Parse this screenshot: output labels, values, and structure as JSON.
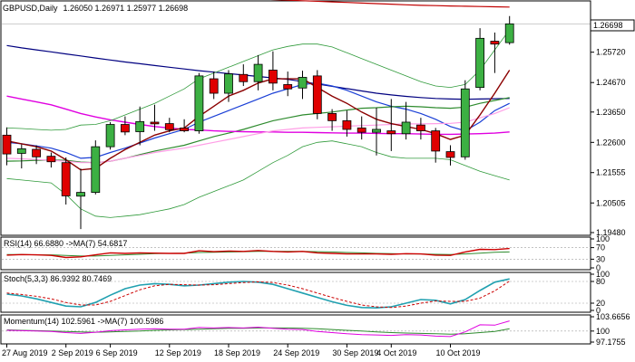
{
  "header": {
    "symbol": "GBPUSD,Daily",
    "ohlc": "1.26050 1.26971 1.25977 1.26698"
  },
  "price_axis": {
    "labels": [
      "1.25720",
      "1.24670",
      "1.23650",
      "1.22600",
      "1.21555",
      "1.20505",
      "1.19480"
    ],
    "current_tag": "1.26698"
  },
  "date_axis": {
    "labels": [
      "27 Aug 2019",
      "2 Sep 2019",
      "6 Sep 2019",
      "12 Sep 2019",
      "18 Sep 2019",
      "24 Sep 2019",
      "30 Sep 2019",
      "4 Oct 2019",
      "10 Oct 2019"
    ]
  },
  "indicators": {
    "rsi": {
      "label": "RSI(14) 66.6880 ->MA(7) 54.6817",
      "levels": [
        "100",
        "70",
        "30",
        "0"
      ]
    },
    "stoch": {
      "label": "Stoch(5,3,3) 86.9392 80.7469",
      "levels": [
        "100",
        "80",
        "20",
        "0"
      ]
    },
    "momentum": {
      "label": "Momentum(14) 102.5961 ->MA(7) 100.5986",
      "levels": [
        "103.6656",
        "100",
        "97.1755"
      ]
    }
  },
  "colors": {
    "bull": "#3cb043",
    "bear": "#e00000",
    "sma_red": "#c00000",
    "sma_navy": "#000080",
    "ema_blue": "#1a3fd6",
    "ma_green": "#2e8b2e",
    "ma_magenta": "#e000e0",
    "ma_pink": "#ff9ee6",
    "boll": "#2f9a3a",
    "fast_red": "#8b0000",
    "stoch_main": "#20a0b0",
    "stoch_signal": "#cc0000",
    "momentum_main": "#e000e0",
    "momentum_signal": "#2e8b2e",
    "rsi_main": "#cc0000",
    "rsi_ma": "#2e8b2e"
  },
  "chart_data": {
    "type": "candlestick",
    "ylim": [
      1.1948,
      1.274
    ],
    "candles": [
      {
        "o": 1.2285,
        "h": 1.2312,
        "l": 1.2181,
        "c": 1.222
      },
      {
        "o": 1.2222,
        "h": 1.2253,
        "l": 1.217,
        "c": 1.2238
      },
      {
        "o": 1.2236,
        "h": 1.225,
        "l": 1.2185,
        "c": 1.221
      },
      {
        "o": 1.2212,
        "h": 1.2225,
        "l": 1.2173,
        "c": 1.2193
      },
      {
        "o": 1.219,
        "h": 1.2208,
        "l": 1.2045,
        "c": 1.2075
      },
      {
        "o": 1.2074,
        "h": 1.2169,
        "l": 1.196,
        "c": 1.2087
      },
      {
        "o": 1.2087,
        "h": 1.2267,
        "l": 1.208,
        "c": 1.2245
      },
      {
        "o": 1.2245,
        "h": 1.233,
        "l": 1.2235,
        "c": 1.2322
      },
      {
        "o": 1.2322,
        "h": 1.235,
        "l": 1.2285,
        "c": 1.2296
      },
      {
        "o": 1.2297,
        "h": 1.2384,
        "l": 1.225,
        "c": 1.2332
      },
      {
        "o": 1.233,
        "h": 1.239,
        "l": 1.23,
        "c": 1.2324
      },
      {
        "o": 1.2325,
        "h": 1.2345,
        "l": 1.2295,
        "c": 1.2304
      },
      {
        "o": 1.231,
        "h": 1.234,
        "l": 1.2295,
        "c": 1.23
      },
      {
        "o": 1.23,
        "h": 1.25,
        "l": 1.229,
        "c": 1.249
      },
      {
        "o": 1.248,
        "h": 1.2505,
        "l": 1.241,
        "c": 1.243
      },
      {
        "o": 1.243,
        "h": 1.251,
        "l": 1.24,
        "c": 1.2497
      },
      {
        "o": 1.2495,
        "h": 1.253,
        "l": 1.2455,
        "c": 1.247
      },
      {
        "o": 1.247,
        "h": 1.2562,
        "l": 1.244,
        "c": 1.253
      },
      {
        "o": 1.251,
        "h": 1.2575,
        "l": 1.244,
        "c": 1.2465
      },
      {
        "o": 1.246,
        "h": 1.2505,
        "l": 1.242,
        "c": 1.2445
      },
      {
        "o": 1.2448,
        "h": 1.2508,
        "l": 1.241,
        "c": 1.2485
      },
      {
        "o": 1.249,
        "h": 1.251,
        "l": 1.234,
        "c": 1.236
      },
      {
        "o": 1.236,
        "h": 1.2375,
        "l": 1.23,
        "c": 1.2335
      },
      {
        "o": 1.2335,
        "h": 1.237,
        "l": 1.228,
        "c": 1.2305
      },
      {
        "o": 1.231,
        "h": 1.235,
        "l": 1.227,
        "c": 1.2295
      },
      {
        "o": 1.2295,
        "h": 1.238,
        "l": 1.2215,
        "c": 1.2305
      },
      {
        "o": 1.23,
        "h": 1.241,
        "l": 1.223,
        "c": 1.229
      },
      {
        "o": 1.229,
        "h": 1.24,
        "l": 1.227,
        "c": 1.233
      },
      {
        "o": 1.232,
        "h": 1.2345,
        "l": 1.227,
        "c": 1.23
      },
      {
        "o": 1.23,
        "h": 1.231,
        "l": 1.219,
        "c": 1.223
      },
      {
        "o": 1.2228,
        "h": 1.225,
        "l": 1.218,
        "c": 1.2208
      },
      {
        "o": 1.221,
        "h": 1.2475,
        "l": 1.22,
        "c": 1.2445
      },
      {
        "o": 1.245,
        "h": 1.2655,
        "l": 1.244,
        "c": 1.262
      },
      {
        "o": 1.261,
        "h": 1.264,
        "l": 1.25,
        "c": 1.26
      },
      {
        "o": 1.2605,
        "h": 1.2697,
        "l": 1.2598,
        "c": 1.267
      }
    ],
    "overlays": [
      {
        "key": "sma200",
        "color": "#c00000",
        "width": 1.2,
        "values": [
          1.279,
          1.2788,
          1.2786,
          1.2784,
          1.2782,
          1.278,
          1.2778,
          1.2776,
          1.2774,
          1.2772,
          1.277,
          1.2768,
          1.2766,
          1.2764,
          1.2762,
          1.276,
          1.2758,
          1.2756,
          1.2754,
          1.2752,
          1.275,
          1.2748,
          1.2746,
          1.2744,
          1.2742,
          1.274,
          1.2738,
          1.2736,
          1.2734,
          1.2733,
          1.2732,
          1.2731,
          1.273,
          1.2729,
          1.2728
        ]
      },
      {
        "key": "sma100",
        "color": "#000080",
        "width": 1.2,
        "values": [
          1.2595,
          1.2587,
          1.258,
          1.2573,
          1.2566,
          1.2559,
          1.2552,
          1.2545,
          1.2538,
          1.2532,
          1.2526,
          1.252,
          1.2514,
          1.2508,
          1.2503,
          1.2498,
          1.2493,
          1.2488,
          1.2483,
          1.2478,
          1.247,
          1.2462,
          1.2454,
          1.2446,
          1.2438,
          1.243,
          1.2424,
          1.2419,
          1.2415,
          1.2412,
          1.241,
          1.2409,
          1.241,
          1.2411,
          1.2412
        ]
      },
      {
        "key": "ema_fast",
        "color": "#1a3fd6",
        "width": 1.2,
        "values": [
          1.226,
          1.2255,
          1.2248,
          1.224,
          1.2225,
          1.2205,
          1.2208,
          1.2225,
          1.224,
          1.2258,
          1.2275,
          1.229,
          1.2305,
          1.233,
          1.235,
          1.237,
          1.239,
          1.241,
          1.243,
          1.2445,
          1.246,
          1.2465,
          1.2455,
          1.244,
          1.242,
          1.24,
          1.2385,
          1.2375,
          1.236,
          1.234,
          1.2315,
          1.23,
          1.233,
          1.237,
          1.2395
        ]
      },
      {
        "key": "ma_green",
        "color": "#2e8b2e",
        "width": 1.2,
        "values": [
          1.2195,
          1.2196,
          1.2198,
          1.2199,
          1.2198,
          1.2192,
          1.219,
          1.2195,
          1.2205,
          1.2218,
          1.223,
          1.224,
          1.225,
          1.2265,
          1.228,
          1.2292,
          1.2305,
          1.232,
          1.2335,
          1.2345,
          1.2355,
          1.236,
          1.2365,
          1.2372,
          1.2378,
          1.238,
          1.2383,
          1.2385,
          1.2383,
          1.238,
          1.2378,
          1.2382,
          1.2395,
          1.2405,
          1.2415
        ]
      },
      {
        "key": "ma_magenta",
        "color": "#e000e0",
        "width": 1.4,
        "values": [
          1.242,
          1.241,
          1.24,
          1.239,
          1.2375,
          1.236,
          1.2348,
          1.2338,
          1.233,
          1.2322,
          1.2315,
          1.231,
          1.2305,
          1.2303,
          1.23,
          1.2298,
          1.2297,
          1.2296,
          1.2296,
          1.2295,
          1.2295,
          1.2294,
          1.2293,
          1.2292,
          1.2292,
          1.2291,
          1.229,
          1.229,
          1.2289,
          1.2288,
          1.2288,
          1.2289,
          1.229,
          1.2292,
          1.2296
        ]
      },
      {
        "key": "ma_pink",
        "color": "#ff9ee6",
        "width": 1.2,
        "values": [
          1.2205,
          1.2203,
          1.2201,
          1.2198,
          1.2195,
          1.219,
          1.219,
          1.2195,
          1.2205,
          1.2215,
          1.2225,
          1.2233,
          1.224,
          1.225,
          1.226,
          1.227,
          1.228,
          1.229,
          1.23,
          1.2305,
          1.231,
          1.2312,
          1.2314,
          1.2316,
          1.2318,
          1.232,
          1.2322,
          1.2324,
          1.2324,
          1.2325,
          1.2326,
          1.233,
          1.2345,
          1.236,
          1.238
        ]
      },
      {
        "key": "boll_upper",
        "color": "#2f9a3a",
        "width": 0.8,
        "values": [
          1.231,
          1.2308,
          1.2305,
          1.2302,
          1.2305,
          1.232,
          1.2322,
          1.2335,
          1.2355,
          1.2375,
          1.2395,
          1.242,
          1.2445,
          1.248,
          1.25,
          1.252,
          1.254,
          1.256,
          1.258,
          1.2592,
          1.26,
          1.26,
          1.259,
          1.257,
          1.255,
          1.253,
          1.251,
          1.249,
          1.247,
          1.2455,
          1.245,
          1.246,
          1.251,
          1.258,
          1.265
        ]
      },
      {
        "key": "boll_lower",
        "color": "#2f9a3a",
        "width": 0.8,
        "values": [
          1.2135,
          1.213,
          1.2125,
          1.212,
          1.208,
          1.203,
          1.2005,
          1.2,
          1.2005,
          1.201,
          1.202,
          1.203,
          1.2045,
          1.207,
          1.209,
          1.211,
          1.213,
          1.216,
          1.219,
          1.2215,
          1.2245,
          1.226,
          1.2265,
          1.2255,
          1.2245,
          1.2225,
          1.221,
          1.2205,
          1.2205,
          1.2205,
          1.22,
          1.218,
          1.216,
          1.2145,
          1.213
        ]
      },
      {
        "key": "fast_red",
        "color": "#8b0000",
        "width": 1.4,
        "values": [
          1.2265,
          1.2255,
          1.2245,
          1.223,
          1.22,
          1.2165,
          1.217,
          1.2205,
          1.2235,
          1.226,
          1.2285,
          1.23,
          1.231,
          1.235,
          1.2385,
          1.242,
          1.244,
          1.2465,
          1.248,
          1.248,
          1.248,
          1.245,
          1.242,
          1.2395,
          1.2365,
          1.234,
          1.2325,
          1.2315,
          1.2305,
          1.229,
          1.227,
          1.2285,
          1.2355,
          1.243,
          1.251
        ]
      }
    ],
    "rsi": {
      "ylim": [
        0,
        100
      ],
      "main": [
        44,
        46,
        45,
        43,
        36,
        38,
        45,
        52,
        50,
        52,
        51,
        50,
        50,
        59,
        56,
        58,
        57,
        60,
        57,
        55,
        57,
        52,
        50,
        48,
        48,
        48,
        47,
        49,
        48,
        44,
        43,
        55,
        64,
        63,
        67
      ],
      "ma": [
        46,
        46,
        45,
        45,
        43,
        41,
        41,
        43,
        45,
        47,
        49,
        50,
        51,
        53,
        54,
        55,
        56,
        57,
        57,
        57,
        57,
        56,
        55,
        53,
        52,
        50,
        49,
        48,
        48,
        47,
        46,
        48,
        51,
        54,
        55
      ]
    },
    "stoch": {
      "ylim": [
        0,
        100
      ],
      "main": [
        45,
        40,
        32,
        22,
        12,
        10,
        22,
        42,
        60,
        70,
        74,
        72,
        68,
        70,
        74,
        78,
        80,
        78,
        72,
        60,
        48,
        36,
        24,
        14,
        8,
        7,
        10,
        20,
        30,
        28,
        18,
        30,
        55,
        78,
        87
      ],
      "signal": [
        48,
        44,
        39,
        32,
        22,
        15,
        15,
        25,
        41,
        57,
        68,
        72,
        71,
        70,
        71,
        74,
        77,
        79,
        77,
        70,
        60,
        48,
        36,
        25,
        15,
        10,
        8,
        12,
        20,
        26,
        25,
        25,
        34,
        54,
        81
      ]
    },
    "momentum": {
      "ylim": [
        97.1755,
        103.6656
      ],
      "main": [
        100.2,
        100.1,
        100.0,
        99.9,
        99.6,
        99.4,
        99.7,
        100.1,
        100.3,
        100.5,
        100.6,
        100.5,
        100.5,
        100.9,
        100.8,
        100.9,
        100.8,
        101.0,
        100.7,
        100.5,
        100.4,
        99.9,
        99.6,
        99.3,
        99.1,
        99.0,
        98.9,
        99.1,
        99.0,
        98.7,
        98.6,
        99.8,
        101.6,
        101.5,
        102.6
      ],
      "signal": [
        100.3,
        100.2,
        100.1,
        100.0,
        99.9,
        99.8,
        99.7,
        99.8,
        99.9,
        100.0,
        100.2,
        100.3,
        100.4,
        100.5,
        100.6,
        100.7,
        100.7,
        100.8,
        100.8,
        100.8,
        100.7,
        100.6,
        100.4,
        100.2,
        100.0,
        99.8,
        99.6,
        99.5,
        99.4,
        99.3,
        99.2,
        99.3,
        99.6,
        99.9,
        100.6
      ]
    }
  }
}
